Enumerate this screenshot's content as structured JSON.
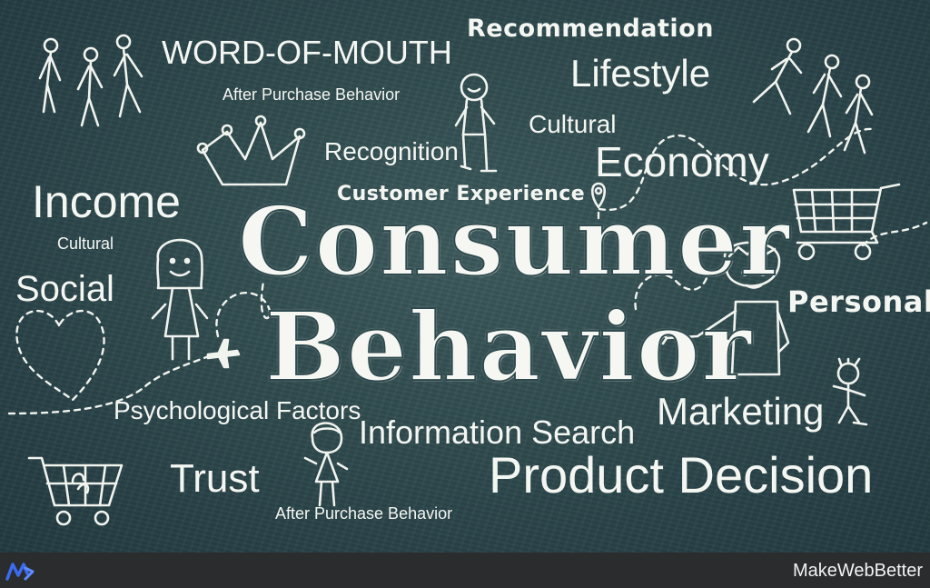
{
  "board": {
    "words": {
      "word_of_mouth": "WORD-OF-MOUTH",
      "recommendation": "Recommendation",
      "lifestyle": "Lifestyle",
      "after_purchase_top": "After Purchase Behavior",
      "cultural_top": "Cultural",
      "recognition": "Recognition",
      "economy": "Economy",
      "customer_experience": "Customer Experience",
      "income": "Income",
      "cultural_left": "Cultural",
      "social": "Social",
      "personal": "Personal",
      "psychological_factors": "Psychological Factors",
      "marketing": "Marketing",
      "information_search": "Information Search",
      "trust": "Trust",
      "product_decision": "Product Decision",
      "after_purchase_bottom": "After Purchase Behavior"
    },
    "title": {
      "line1": "Consumer",
      "line2": "Behavior"
    }
  },
  "footer": {
    "brand": "MakeWebBetter",
    "logo_icon": "makewebbetter-logo-icon"
  },
  "colors": {
    "board": "#2f4a4e",
    "chalk": "#f4f6f2",
    "footer": "#2b2c2e",
    "logo": "#3b6cf0"
  }
}
